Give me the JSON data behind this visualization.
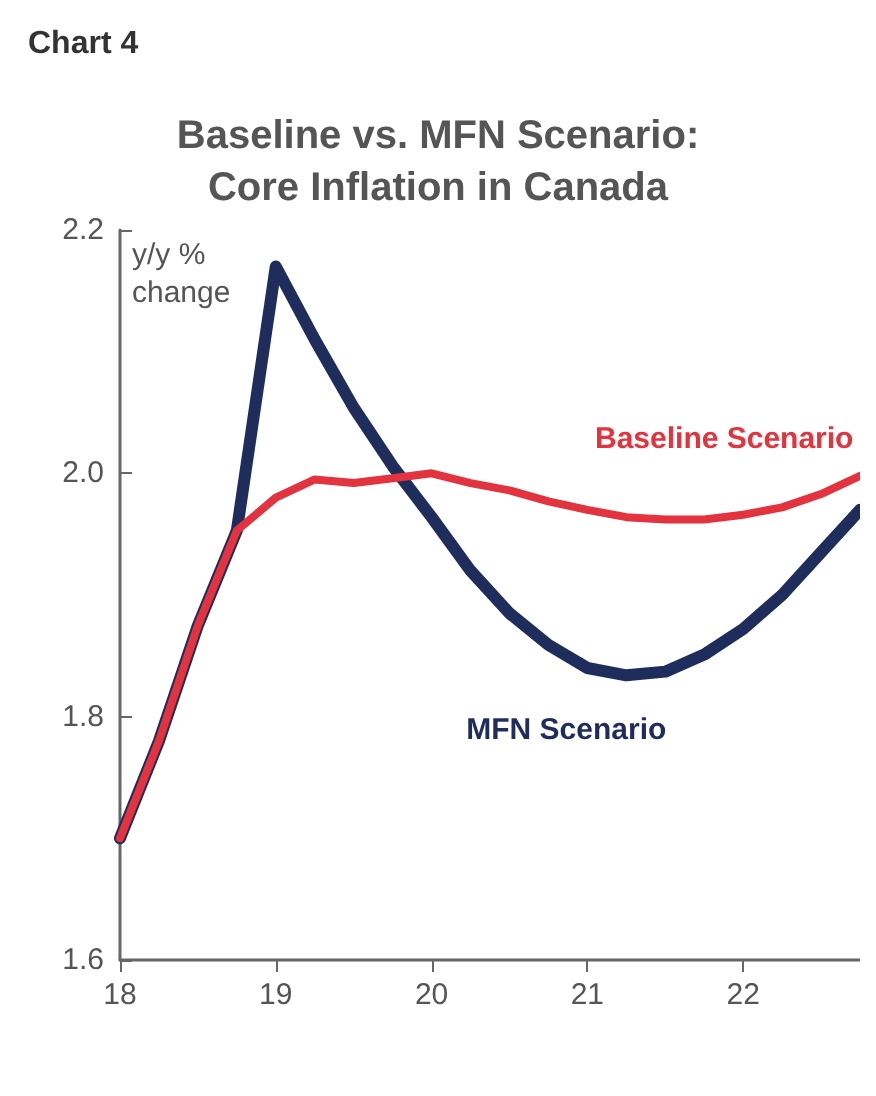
{
  "chart_data": {
    "type": "line",
    "title": "Baseline vs. MFN Scenario:\nCore Inflation in Canada",
    "ylabel": "y/y %\nchange",
    "annotations": [
      "Chart 4"
    ],
    "x": [
      18,
      18.25,
      18.5,
      18.75,
      19,
      19.25,
      19.5,
      19.75,
      20,
      20.25,
      20.5,
      20.75,
      21,
      21.25,
      21.5,
      21.75,
      22,
      22.25,
      22.5,
      22.75
    ],
    "series": [
      {
        "name": "Baseline Scenario",
        "color": "#e2333f",
        "values": [
          1.7,
          1.78,
          1.875,
          1.953,
          1.98,
          1.995,
          1.992,
          1.996,
          2.0,
          1.992,
          1.986,
          1.977,
          1.97,
          1.964,
          1.962,
          1.962,
          1.966,
          1.972,
          1.983,
          1.998
        ]
      },
      {
        "name": "MFN Scenario",
        "color": "#1f2d5c",
        "values": [
          1.7,
          1.78,
          1.875,
          1.953,
          2.17,
          2.11,
          2.054,
          2.006,
          1.964,
          1.92,
          1.885,
          1.859,
          1.84,
          1.834,
          1.837,
          1.851,
          1.872,
          1.9,
          1.935,
          1.97
        ]
      }
    ],
    "xlim": [
      18,
      22.75
    ],
    "xticks": [
      18,
      19,
      20,
      21,
      22
    ],
    "ylim": [
      1.6,
      2.2
    ],
    "yticks": [
      1.6,
      1.8,
      {
        "value": 2,
        "label": "2.0"
      },
      2.2
    ],
    "grid": false,
    "legend": false,
    "marker": "none",
    "line_style": "solid"
  }
}
